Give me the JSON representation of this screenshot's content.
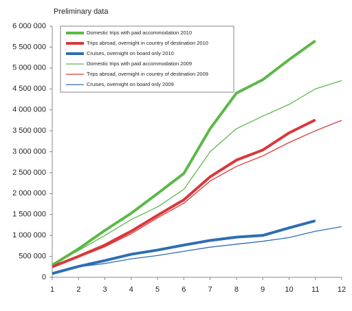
{
  "chart_data": {
    "type": "line",
    "title": "Preliminary data",
    "x": [
      1,
      2,
      3,
      4,
      5,
      6,
      7,
      8,
      9,
      10,
      11,
      12
    ],
    "xlim": [
      1,
      12
    ],
    "xticks": [
      1,
      2,
      3,
      4,
      5,
      6,
      7,
      8,
      9,
      10,
      11,
      12
    ],
    "ylim": [
      0,
      6000000
    ],
    "yticks": [
      0,
      {
        "value": 500000,
        "label": "500 000"
      },
      {
        "value": 1000000,
        "label": "1 000 000"
      },
      {
        "value": 1500000,
        "label": "1 500 000"
      },
      {
        "value": 2000000,
        "label": "2 000 000"
      },
      {
        "value": 2500000,
        "label": "2 500 000"
      },
      {
        "value": 3000000,
        "label": "3 000 000"
      },
      {
        "value": 3500000,
        "label": "3 500 000"
      },
      {
        "value": 4000000,
        "label": "4 000 000"
      },
      {
        "value": 4500000,
        "label": "4 500 000"
      },
      {
        "value": 5000000,
        "label": "5 000 000"
      },
      {
        "value": 5500000,
        "label": "5 500 000"
      },
      {
        "value": 6000000,
        "label": "6 000 000"
      }
    ],
    "grid": false,
    "legend": "upper left",
    "series": [
      {
        "name": "Domestic trips with paid accommodation  2010",
        "color": "#5cb848",
        "linewidth": 4,
        "values": [
          290000,
          680000,
          1120000,
          1530000,
          2000000,
          2480000,
          3550000,
          4400000,
          4720000,
          5200000,
          5650000,
          null
        ]
      },
      {
        "name": "Trips abroad, overnight in country of destination  2010",
        "color": "#d9373a",
        "linewidth": 4,
        "values": [
          250000,
          500000,
          770000,
          1100000,
          1480000,
          1850000,
          2400000,
          2800000,
          3040000,
          3450000,
          3760000,
          null
        ]
      },
      {
        "name": "Cruises, overnight on board  only 2010",
        "color": "#2e6db4",
        "linewidth": 4,
        "values": [
          90000,
          260000,
          400000,
          550000,
          650000,
          770000,
          880000,
          960000,
          1000000,
          1180000,
          1350000,
          null
        ]
      },
      {
        "name": "Domestic trips with paid accommodation  2009",
        "color": "#5cb848",
        "linewidth": 1.3,
        "values": [
          290000,
          640000,
          1000000,
          1380000,
          1680000,
          2100000,
          3000000,
          3550000,
          3850000,
          4130000,
          4500000,
          4700000
        ]
      },
      {
        "name": "Trips abroad, overnight in country of destination  2009",
        "color": "#d9373a",
        "linewidth": 1.3,
        "values": [
          250000,
          480000,
          730000,
          1040000,
          1420000,
          1770000,
          2300000,
          2650000,
          2900000,
          3220000,
          3500000,
          3750000
        ]
      },
      {
        "name": "Cruises, overnight on board  only 2009",
        "color": "#2e6db4",
        "linewidth": 1.3,
        "values": [
          90000,
          250000,
          330000,
          440000,
          520000,
          620000,
          720000,
          790000,
          860000,
          950000,
          1100000,
          1210000
        ]
      }
    ]
  }
}
